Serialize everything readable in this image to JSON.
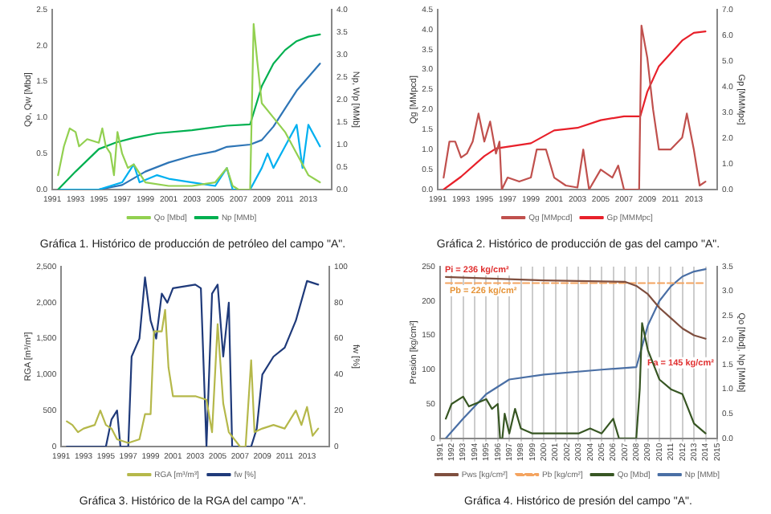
{
  "chart_data": [
    {
      "type": "line",
      "title": "Gráfica 1. Histórico de producción de petróleo del campo \"A\".",
      "ylabel": "Qo, Qw [Mbd]",
      "y2label": "Np, Wp [MMb]",
      "legend": "bottom",
      "grid": false,
      "marker": "none",
      "xlim": [
        1991,
        2015
      ],
      "xticks": [
        1991,
        1993,
        1995,
        1997,
        1999,
        2001,
        2003,
        2005,
        2007,
        2009,
        2011,
        2013
      ],
      "ylim": [
        0,
        2.5
      ],
      "yticks": [
        {
          "value": 0,
          "label": "0.0"
        },
        0.5,
        {
          "value": 1,
          "label": "1.0"
        },
        1.5,
        {
          "value": 2,
          "label": "2.0"
        },
        2.5
      ],
      "y2lim": [
        0,
        4
      ],
      "y2ticks": [
        {
          "value": 0,
          "label": "0.0"
        },
        0.5,
        {
          "value": 1,
          "label": "1.0"
        },
        1.5,
        {
          "value": 2,
          "label": "2.0"
        },
        2.5,
        {
          "value": 3,
          "label": "3.0"
        },
        3.5,
        {
          "value": 4,
          "label": "4.0"
        }
      ],
      "series": [
        {
          "name": "Qo [Mbd]",
          "color": "#92d050",
          "axis": "y",
          "x": [
            1991.5,
            1992,
            1992.5,
            1993,
            1993.3,
            1994,
            1995,
            1995.3,
            1995.6,
            1996,
            1996.3,
            1996.6,
            1997,
            1997.5,
            1998,
            1999,
            2001,
            2003,
            2005,
            2006,
            2006.5,
            2007,
            2008,
            2008.3,
            2008.6,
            2009,
            2010,
            2011,
            2012,
            2013,
            2014
          ],
          "values": [
            0.2,
            0.6,
            0.85,
            0.8,
            0.6,
            0.7,
            0.65,
            0.85,
            0.6,
            0.5,
            0.2,
            0.8,
            0.5,
            0.3,
            0.35,
            0.1,
            0.05,
            0.05,
            0.1,
            0.3,
            0.05,
            0,
            0,
            2.3,
            1.8,
            1.2,
            1,
            0.8,
            0.5,
            0.2,
            0.1
          ]
        },
        {
          "name": "Np [MMb]",
          "color": "#00b050",
          "axis": "y2",
          "x": [
            1991.5,
            1993,
            1995,
            1996.5,
            1998,
            2000,
            2003,
            2006,
            2008,
            2009,
            2010,
            2011,
            2012,
            2013,
            2014
          ],
          "values": [
            0,
            0.4,
            0.9,
            1.05,
            1.15,
            1.25,
            1.32,
            1.42,
            1.45,
            2.3,
            2.8,
            3.1,
            3.3,
            3.4,
            3.45
          ]
        },
        {
          "color": "#00b0f0",
          "axis": "y",
          "x": [
            1991.5,
            1995,
            1996,
            1997,
            1998,
            1998.5,
            2000,
            2001,
            2003,
            2005,
            2006,
            2006.5,
            2008,
            2009,
            2009.5,
            2010,
            2011,
            2012,
            2012.5,
            2013,
            2014
          ],
          "values": [
            0,
            0,
            0.05,
            0.1,
            0.35,
            0.1,
            0.2,
            0.15,
            0.1,
            0.05,
            0.3,
            0,
            0,
            0.3,
            0.5,
            0.3,
            0.6,
            0.9,
            0.3,
            0.9,
            0.6
          ]
        },
        {
          "color": "#2e75b6",
          "axis": "y2",
          "x": [
            1991.5,
            1995,
            1997,
            1999,
            2001,
            2003,
            2005,
            2006,
            2008,
            2009,
            2010,
            2011,
            2012,
            2013,
            2014
          ],
          "values": [
            0,
            0,
            0.1,
            0.4,
            0.6,
            0.75,
            0.85,
            0.95,
            1,
            1.1,
            1.4,
            1.8,
            2.2,
            2.5,
            2.8
          ]
        }
      ]
    },
    {
      "type": "line",
      "title": "Gráfica 2. Histórico de producción de gas del campo \"A\".",
      "ylabel": "Qg [MMpcd]",
      "y2label": "Gp [MMMpc]",
      "legend": "bottom",
      "grid": false,
      "marker": "none",
      "xlim": [
        1991,
        2015
      ],
      "xticks": [
        1991,
        1993,
        1995,
        1997,
        1999,
        2001,
        2003,
        2005,
        2007,
        2009,
        2011,
        2013
      ],
      "ylim": [
        0,
        4.5
      ],
      "yticks": [
        {
          "value": 0,
          "label": "0.0"
        },
        0.5,
        {
          "value": 1,
          "label": "1.0"
        },
        1.5,
        {
          "value": 2,
          "label": "2.0"
        },
        2.5,
        {
          "value": 3,
          "label": "3.0"
        },
        3.5,
        {
          "value": 4,
          "label": "4.0"
        },
        4.5
      ],
      "y2lim": [
        0,
        7
      ],
      "y2ticks": [
        {
          "value": 0,
          "label": "0.0"
        },
        {
          "value": 1,
          "label": "1.0"
        },
        {
          "value": 2,
          "label": "2.0"
        },
        {
          "value": 3,
          "label": "3.0"
        },
        {
          "value": 4,
          "label": "4.0"
        },
        {
          "value": 5,
          "label": "5.0"
        },
        {
          "value": 6,
          "label": "6.0"
        },
        {
          "value": 7,
          "label": "7.0"
        }
      ],
      "series": [
        {
          "name": "Qg [MMpcd]",
          "color": "#c0504d",
          "axis": "y",
          "x": [
            1991.5,
            1992,
            1992.5,
            1993,
            1993.5,
            1994,
            1994.5,
            1995,
            1995.5,
            1996,
            1996.3,
            1996.5,
            1997,
            1998,
            1999,
            1999.5,
            2000.3,
            2001,
            2002,
            2003,
            2003.5,
            2004,
            2005,
            2006,
            2006.5,
            2007,
            2008.3,
            2008.5,
            2009,
            2009.5,
            2010,
            2011,
            2012,
            2012.4,
            2013,
            2013.5,
            2014
          ],
          "values": [
            0.3,
            1.2,
            1.2,
            0.8,
            0.9,
            1.2,
            1.9,
            1.2,
            1.7,
            0.9,
            1.2,
            0,
            0.3,
            0.2,
            0.3,
            1,
            1,
            0.3,
            0.1,
            0.05,
            1,
            0,
            0.5,
            0.3,
            0.6,
            0,
            0,
            4.1,
            3.3,
            2,
            1,
            1,
            1.3,
            1.9,
            1,
            0.1,
            0.2
          ]
        },
        {
          "name": "Gp [MMMpc]",
          "color": "#e8202a",
          "axis": "y2",
          "x": [
            1991.5,
            1993,
            1995,
            1996,
            1999,
            2001,
            2003,
            2005,
            2007,
            2008.4,
            2009,
            2010,
            2011,
            2012,
            2013,
            2014
          ],
          "values": [
            0,
            0.5,
            1.3,
            1.6,
            1.8,
            2.3,
            2.4,
            2.7,
            2.85,
            2.85,
            3.8,
            4.8,
            5.3,
            5.8,
            6.1,
            6.15
          ]
        }
      ]
    },
    {
      "type": "line",
      "title": "Gráfica 3. Histórico de la RGA del campo \"A\".",
      "ylabel": "RGA [m³/m³]",
      "y2label": "fw [%]",
      "legend": "bottom",
      "grid": false,
      "marker": "none",
      "xlim": [
        1991,
        2015
      ],
      "xticks": [
        1991,
        1993,
        1995,
        1997,
        1999,
        2001,
        2003,
        2005,
        2007,
        2009,
        2011,
        2013
      ],
      "ylim": [
        0,
        2500
      ],
      "yticks": [
        0,
        500,
        {
          "value": 1000,
          "label": "1,000"
        },
        {
          "value": 1500,
          "label": "1,500"
        },
        {
          "value": 2000,
          "label": "2,000"
        },
        {
          "value": 2500,
          "label": "2,500"
        }
      ],
      "y2lim": [
        0,
        100
      ],
      "y2ticks": [
        0,
        20,
        40,
        60,
        80,
        100
      ],
      "series": [
        {
          "name": "RGA [m³/m³]",
          "color": "#b5b84a",
          "axis": "y",
          "x": [
            1991.5,
            1992,
            1992.5,
            1993,
            1994,
            1994.5,
            1995,
            1995.5,
            1996,
            1997,
            1998,
            1998.5,
            1999,
            1999.3,
            2000,
            2000.3,
            2000.6,
            2001,
            2003,
            2004,
            2004.5,
            2005,
            2005.5,
            2006,
            2007,
            2007.5,
            2008,
            2008.3,
            2009,
            2010,
            2011,
            2012,
            2012.5,
            2013,
            2013.5,
            2014
          ],
          "values": [
            350,
            300,
            200,
            250,
            300,
            500,
            300,
            250,
            100,
            50,
            100,
            450,
            450,
            1600,
            1600,
            1900,
            1100,
            700,
            700,
            650,
            200,
            1700,
            600,
            200,
            0,
            0,
            1200,
            200,
            250,
            300,
            250,
            500,
            300,
            550,
            150,
            250
          ]
        },
        {
          "name": "fw [%]",
          "color": "#1f3a7a",
          "axis": "y2",
          "x": [
            1991.5,
            1995,
            1995.5,
            1996,
            1996.3,
            1997,
            1997.3,
            1998,
            1998.5,
            1999,
            1999.5,
            2000,
            2000.5,
            2001,
            2003,
            2003.5,
            2004,
            2004.5,
            2005,
            2005.5,
            2006,
            2006.3,
            2008,
            2008.5,
            2009,
            2010,
            2011,
            2012,
            2013,
            2014
          ],
          "values": [
            0,
            0,
            15,
            20,
            0,
            0,
            50,
            60,
            94,
            70,
            60,
            85,
            80,
            88,
            90,
            88,
            0,
            85,
            90,
            50,
            80,
            0,
            0,
            10,
            40,
            50,
            55,
            70,
            92,
            90
          ]
        }
      ]
    },
    {
      "type": "line",
      "title": "Gráfica 4. Histórico de presión del campo \"A\".",
      "ylabel": "Presión [kg/cm²]",
      "y2label": "Qo [Mbd], Np [MMb]",
      "legend": "bottom",
      "grid": "x",
      "marker": "none",
      "xlim": [
        1991,
        2015
      ],
      "xticks": [
        1991,
        1992,
        1993,
        1994,
        1995,
        1996,
        1997,
        1998,
        1999,
        2000,
        2001,
        2002,
        2003,
        2004,
        2005,
        2006,
        2007,
        2008,
        2009,
        2010,
        2011,
        2012,
        2013,
        2014,
        2015
      ],
      "ylim": [
        0,
        250
      ],
      "yticks": [
        0,
        50,
        100,
        150,
        200,
        250
      ],
      "y2lim": [
        0,
        3.5
      ],
      "y2ticks": [
        {
          "value": 0,
          "label": "0.0"
        },
        0.5,
        {
          "value": 1,
          "label": "1.0"
        },
        1.5,
        {
          "value": 2,
          "label": "2.0"
        },
        2.5,
        {
          "value": 3,
          "label": "3.0"
        },
        3.5
      ],
      "annotations": [
        "Pi = 236 kg/cm²",
        "Pb = 226 kg/cm²",
        "Pa = 145 kg/cm²"
      ],
      "series": [
        {
          "name": "Pws [kg/cm²]",
          "color": "#7f4f3f",
          "axis": "y",
          "x": [
            1991.5,
            2000,
            2007,
            2008,
            2009,
            2010,
            2011,
            2012,
            2013,
            2014
          ],
          "values": [
            235,
            230,
            228,
            222,
            210,
            190,
            175,
            160,
            150,
            145
          ]
        },
        {
          "name": "Pb [kg/cm²]",
          "color": "#f4a460",
          "axis": "y",
          "line_style": "dashed",
          "x": [
            1991.5,
            2014
          ],
          "values": [
            226,
            226
          ]
        },
        {
          "name": "Qo [Mbd]",
          "color": "#375623",
          "axis": "y2",
          "x": [
            1991.5,
            1992,
            1993,
            1993.5,
            1994,
            1995,
            1995.5,
            1996,
            1996.2,
            1996.4,
            1996.6,
            1997,
            1997.5,
            1998,
            1999,
            2003,
            2004,
            2005,
            2006,
            2006.5,
            2008,
            2008.3,
            2008.5,
            2009,
            2010,
            2011,
            2012,
            2013,
            2014
          ],
          "values": [
            0.4,
            0.7,
            0.85,
            0.65,
            0.7,
            0.8,
            0.6,
            0.7,
            0,
            0,
            0.5,
            0.1,
            0.6,
            0.2,
            0.1,
            0.1,
            0.2,
            0.1,
            0.4,
            0,
            0,
            1,
            2.35,
            1.8,
            1.2,
            1,
            0.9,
            0.3,
            0.1
          ]
        },
        {
          "name": "Np [MMb]",
          "color": "#4a6fa5",
          "axis": "y2",
          "x": [
            1991.5,
            1993,
            1995,
            1997,
            2000,
            2005,
            2008,
            2009,
            2010,
            2011,
            2012,
            2013,
            2014
          ],
          "values": [
            0,
            0.4,
            0.9,
            1.2,
            1.3,
            1.4,
            1.45,
            2.3,
            2.8,
            3.1,
            3.3,
            3.4,
            3.45
          ]
        }
      ]
    }
  ]
}
